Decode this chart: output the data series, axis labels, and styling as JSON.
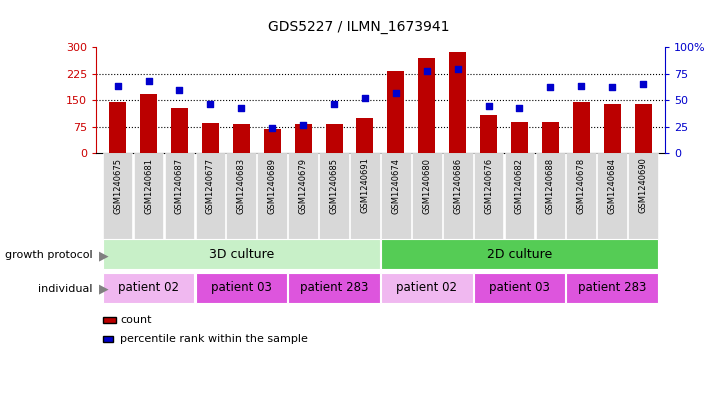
{
  "title": "GDS5227 / ILMN_1673941",
  "samples": [
    "GSM1240675",
    "GSM1240681",
    "GSM1240687",
    "GSM1240677",
    "GSM1240683",
    "GSM1240689",
    "GSM1240679",
    "GSM1240685",
    "GSM1240691",
    "GSM1240674",
    "GSM1240680",
    "GSM1240686",
    "GSM1240676",
    "GSM1240682",
    "GSM1240688",
    "GSM1240678",
    "GSM1240684",
    "GSM1240690"
  ],
  "counts": [
    145,
    167,
    128,
    85,
    83,
    70,
    83,
    83,
    100,
    232,
    270,
    285,
    107,
    88,
    88,
    145,
    140,
    138
  ],
  "percentiles": [
    63,
    68,
    60,
    46,
    43,
    24,
    27,
    46,
    52,
    57,
    78,
    79,
    45,
    43,
    62,
    63,
    62,
    65
  ],
  "growth_protocol_groups": [
    {
      "label": "3D culture",
      "start": 0,
      "end": 8,
      "color": "#c8f0c8"
    },
    {
      "label": "2D culture",
      "start": 9,
      "end": 17,
      "color": "#55cc55"
    }
  ],
  "individual_groups": [
    {
      "label": "patient 02",
      "start": 0,
      "end": 2,
      "color": "#f0b8f0"
    },
    {
      "label": "patient 03",
      "start": 3,
      "end": 5,
      "color": "#dd55dd"
    },
    {
      "label": "patient 283",
      "start": 6,
      "end": 8,
      "color": "#dd55dd"
    },
    {
      "label": "patient 02",
      "start": 9,
      "end": 11,
      "color": "#f0b8f0"
    },
    {
      "label": "patient 03",
      "start": 12,
      "end": 14,
      "color": "#dd55dd"
    },
    {
      "label": "patient 283",
      "start": 15,
      "end": 17,
      "color": "#dd55dd"
    }
  ],
  "ylim_left": [
    0,
    300
  ],
  "yticks_left": [
    0,
    75,
    150,
    225,
    300
  ],
  "ylim_right": [
    0,
    100
  ],
  "yticks_right": [
    0,
    25,
    50,
    75,
    100
  ],
  "bar_color": "#bb0000",
  "dot_color": "#0000cc",
  "bg_color": "#ffffff",
  "plot_bg_color": "#ffffff",
  "left_label_color": "#cc0000",
  "right_label_color": "#0000cc",
  "sample_box_color": "#d8d8d8"
}
